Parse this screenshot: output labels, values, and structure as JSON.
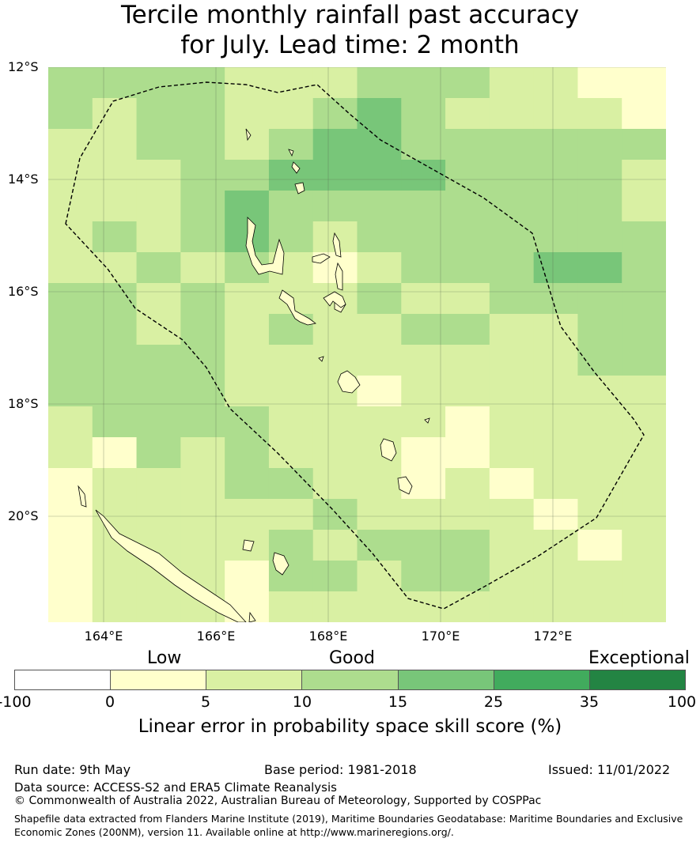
{
  "title": {
    "line1": "Tercile monthly rainfall past accuracy",
    "line2": "for July. Lead time: 2 month"
  },
  "map": {
    "lat_labels": [
      "12°S",
      "14°S",
      "16°S",
      "18°S",
      "20°S"
    ],
    "lon_labels": [
      "164°E",
      "166°E",
      "168°E",
      "170°E",
      "172°E"
    ],
    "grid": [
      [
        3,
        3,
        3,
        3,
        3,
        2,
        2,
        2,
        3,
        3,
        3,
        3,
        3,
        3,
        3,
        3,
        3,
        3,
        3,
        3,
        2,
        2,
        2,
        2,
        2,
        2,
        2,
        2,
        2,
        2,
        2,
        1,
        1,
        1,
        1,
        1,
        1,
        1,
        1
      ],
      [
        3,
        2,
        2,
        2,
        2,
        2,
        2,
        2,
        3,
        3,
        3,
        3,
        3,
        3,
        3,
        3,
        3,
        3,
        3,
        3,
        2,
        2,
        2,
        2,
        2,
        2,
        2,
        2,
        2,
        2,
        2,
        1,
        1,
        1,
        1,
        1,
        1,
        1,
        1
      ],
      [
        2,
        2,
        2,
        2,
        3,
        3,
        3,
        3,
        3,
        3,
        3,
        3,
        3,
        4,
        4,
        4,
        4,
        4,
        4,
        4,
        2,
        2,
        2,
        2,
        2,
        2,
        2,
        2,
        2,
        2,
        2,
        2,
        2,
        2,
        2,
        2,
        2,
        2,
        2
      ],
      [
        2,
        2,
        2,
        2,
        2,
        3,
        3,
        3,
        3,
        3,
        3,
        3,
        3,
        4,
        4,
        4,
        4,
        4,
        4,
        4,
        3,
        3,
        3,
        3,
        3,
        3,
        3,
        3,
        3,
        3,
        3,
        3,
        3,
        3,
        3,
        3,
        3,
        2,
        2
      ],
      [
        2,
        2,
        2,
        2,
        3,
        3,
        3,
        3,
        3,
        3,
        3,
        3,
        3,
        3,
        3,
        3,
        3,
        3,
        3,
        3,
        3,
        3,
        3,
        3,
        3,
        3,
        3,
        3,
        3,
        3,
        3,
        3,
        3,
        3,
        3,
        3,
        3,
        3,
        3
      ],
      [
        2,
        2,
        2,
        2,
        2,
        3,
        3,
        3,
        3,
        3,
        3,
        3,
        3,
        3,
        3,
        3,
        3,
        3,
        3,
        3,
        3,
        3,
        3,
        3,
        3,
        3,
        3,
        3,
        3,
        3,
        3,
        3,
        3,
        3,
        3,
        3,
        3,
        3,
        3
      ],
      [
        2,
        2,
        2,
        2,
        2,
        2,
        2,
        2,
        2,
        2,
        3,
        3,
        3,
        3,
        3,
        3,
        3,
        3,
        3,
        3,
        2,
        2,
        2,
        2,
        2,
        2,
        2,
        2,
        2,
        2,
        2,
        3,
        3,
        3,
        3,
        3,
        3,
        3,
        3
      ],
      [
        2,
        2,
        2,
        2,
        2,
        2,
        2,
        2,
        2,
        2,
        2,
        2,
        2,
        2,
        2,
        2,
        2,
        2,
        2,
        2,
        2,
        2,
        2,
        2,
        2,
        2,
        2,
        2,
        2,
        2,
        2,
        2,
        2,
        2,
        2,
        2,
        2,
        2,
        2
      ],
      [
        2,
        2,
        2,
        2,
        2,
        2,
        2,
        2,
        2,
        2,
        2,
        2,
        2,
        2,
        2,
        2,
        2,
        2,
        2,
        2,
        2,
        2,
        2,
        2,
        2,
        2,
        2,
        2,
        2,
        2,
        2,
        2,
        2,
        2,
        2,
        2,
        2,
        2,
        2
      ]
    ],
    "grid_base": [
      [
        3,
        3,
        3,
        3,
        3,
        3,
        3,
        3,
        3,
        3,
        3,
        3,
        3,
        3,
        3,
        3,
        3,
        3,
        3,
        3,
        3,
        3,
        3,
        3,
        3,
        3,
        3,
        3,
        3,
        3,
        3,
        2,
        2,
        2,
        2,
        2,
        2,
        2,
        2
      ]
    ]
  },
  "colorbar": {
    "categories": [
      "Low",
      "Good",
      "Exceptional"
    ],
    "ticks": [
      "-100",
      "0",
      "5",
      "10",
      "15",
      "25",
      "35",
      "100"
    ],
    "colors": [
      "#ffffff",
      "#ffffcc",
      "#d9f0a3",
      "#addd8e",
      "#78c679",
      "#41ab5d",
      "#238443"
    ],
    "title": "Linear error in probability space skill score (%)"
  },
  "footer": {
    "run_date": "Run date: 9th May",
    "base_period": "Base period: 1981-2018",
    "issued": "Issued: 11/01/2022",
    "data_source": "Data source: ACCESS-S2 and ERA5 Climate Reanalysis",
    "copyright": "© Commonwealth of Australia 2022, Australian Bureau of Meteorology, Supported by COSPPac",
    "shapefile_line1": "Shapefile data extracted from Flanders Marine Institute (2019), Maritime Boundaries Geodatabase: Maritime Boundaries and Exclusive",
    "shapefile_line2": "Economic Zones (200NM), version 11. Available online at http://www.marineregions.org/."
  }
}
